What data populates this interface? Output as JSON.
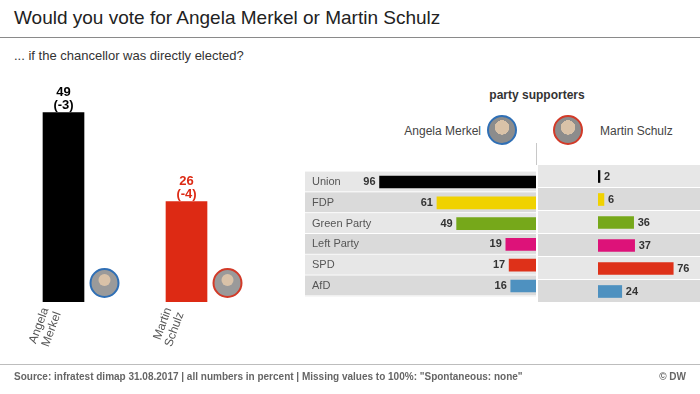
{
  "title": "Would you vote for Angela Merkel or Martin Schulz",
  "subtitle": "... if the chancellor was directly elected?",
  "source": "Source: infratest dimap 31.08.2017 | all numbers in percent | Missing values to 100%: \"Spontaneous: none\"",
  "credit": "© DW",
  "chart_data": [
    {
      "type": "bar",
      "categories": [
        "Angela Merkel",
        "Martin Schulz"
      ],
      "values": [
        49,
        26
      ],
      "colors": [
        "#000000",
        "#dd2a14"
      ],
      "data_labels": true,
      "changes": [
        -3,
        -4
      ],
      "change_labels": [
        "(-3)",
        "(-4)"
      ],
      "ylim": [
        0,
        52
      ],
      "tick_labels": "x"
    },
    {
      "type": "bar",
      "title": "party supporters",
      "orientation": "horizontal",
      "categories": [
        "Union",
        "FDP",
        "Green Party",
        "Left Party",
        "SPD",
        "AfD"
      ],
      "series": [
        {
          "name": "Angela Merkel",
          "values": [
            96,
            61,
            49,
            19,
            17,
            16
          ],
          "colors": [
            "#000000",
            "#f0d200",
            "#76a81a",
            "#dd1279",
            "#de3119",
            "#4e91c0"
          ]
        },
        {
          "name": "Martin Schulz",
          "values": [
            2,
            6,
            36,
            37,
            76,
            24
          ],
          "colors": [
            "#000000",
            "#f0d200",
            "#76a81a",
            "#dd1279",
            "#de3119",
            "#4e91c0"
          ]
        }
      ],
      "xlim": [
        0,
        100
      ],
      "data_labels": true,
      "tick_labels": "y"
    }
  ]
}
